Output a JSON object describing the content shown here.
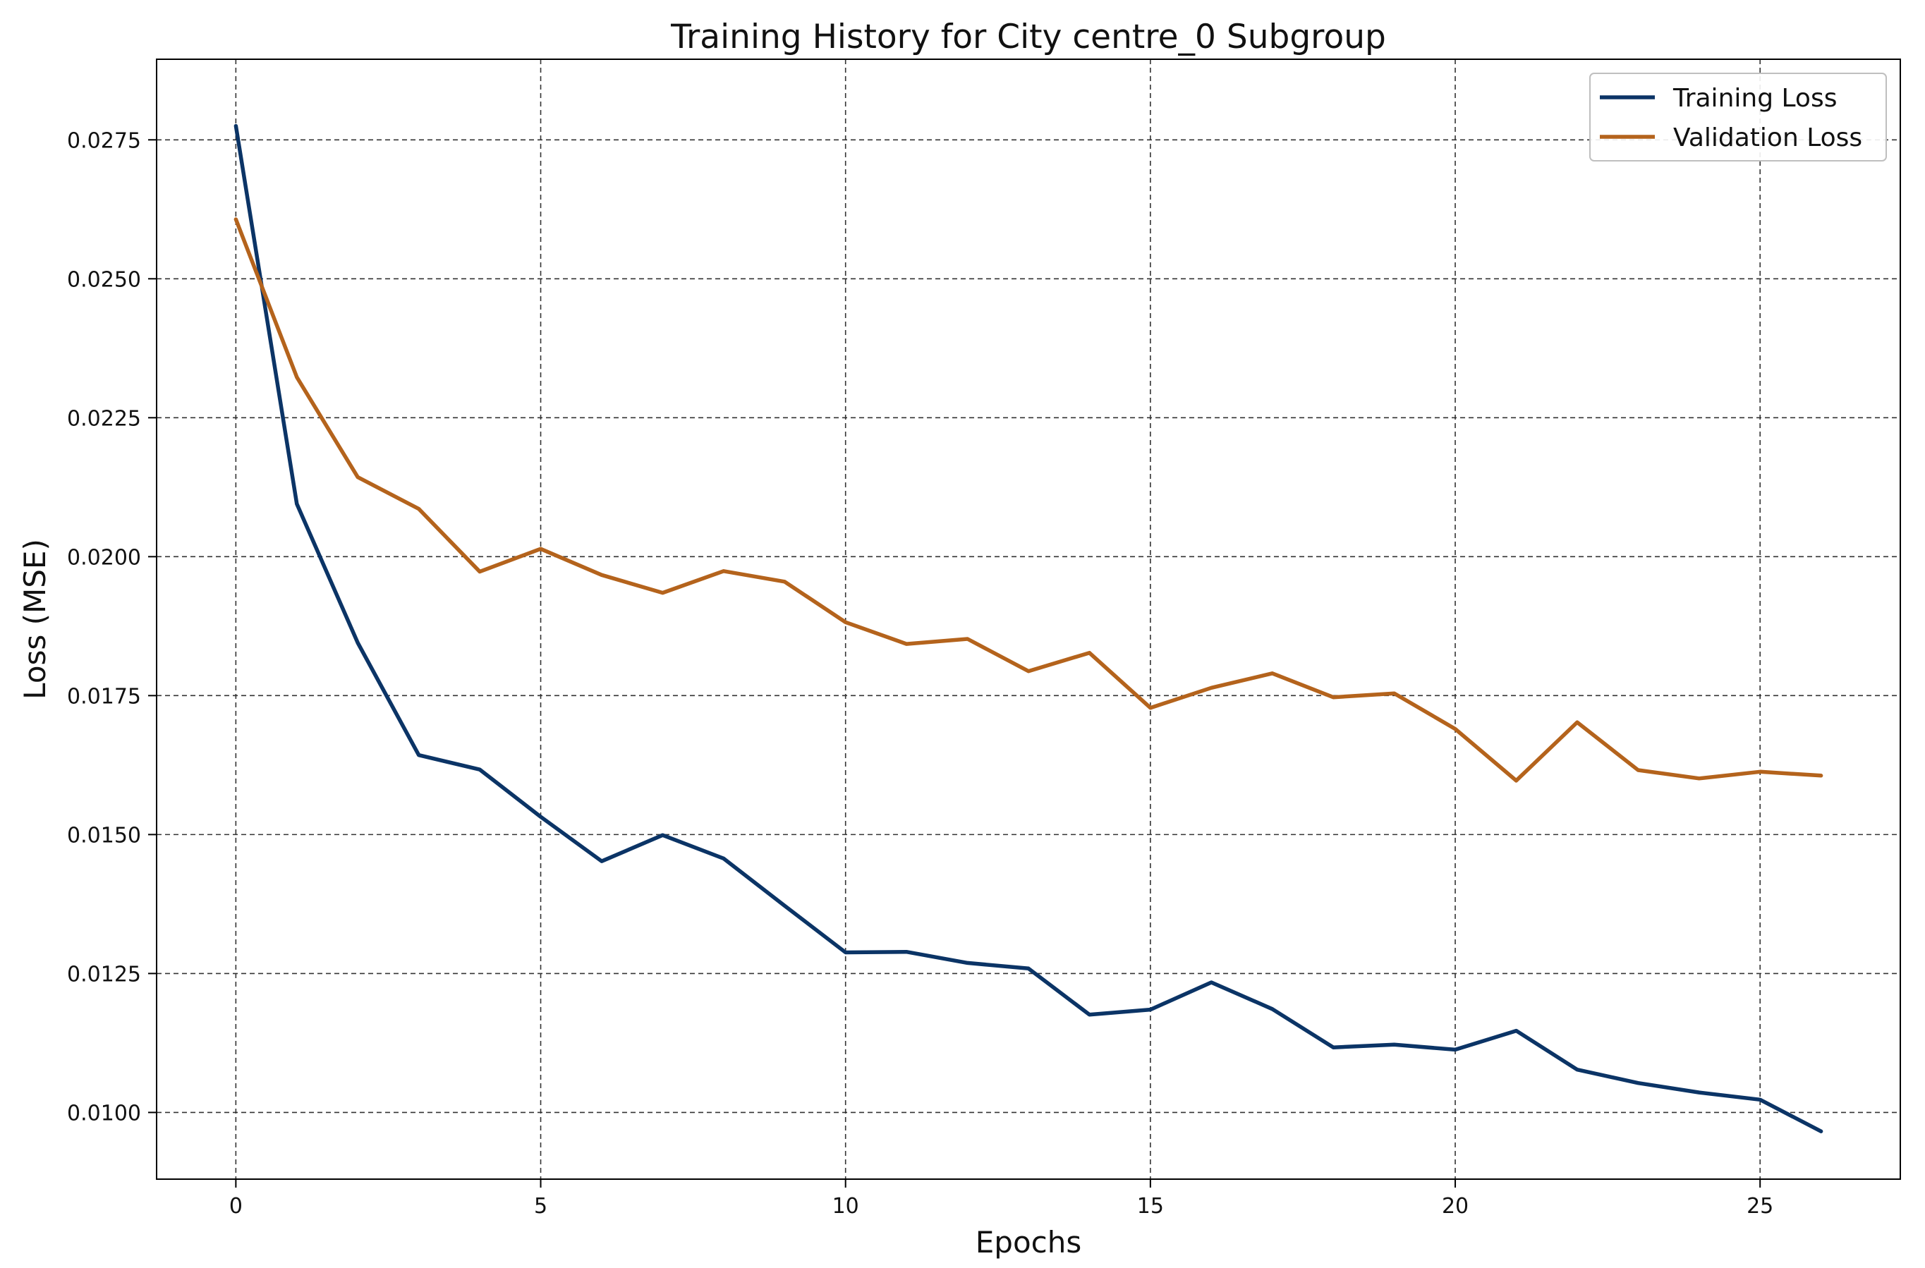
{
  "chart_data": {
    "type": "line",
    "title": "Training History for City centre_0 Subgroup",
    "xlabel": "Epochs",
    "ylabel": "Loss (MSE)",
    "xlim": [
      -1.3,
      27.3
    ],
    "ylim": [
      0.0088,
      0.02895
    ],
    "x_ticks": [
      0,
      5,
      10,
      15,
      20,
      25
    ],
    "x_tick_labels": [
      "0",
      "5",
      "10",
      "15",
      "20",
      "25"
    ],
    "y_ticks": [
      0.01,
      0.0125,
      0.015,
      0.0175,
      0.02,
      0.0225,
      0.025,
      0.0275
    ],
    "y_tick_labels": [
      "0.0100",
      "0.0125",
      "0.0150",
      "0.0175",
      "0.0200",
      "0.0225",
      "0.0250",
      "0.0275"
    ],
    "grid": true,
    "legend_position": "top-right",
    "x": [
      0,
      1,
      2,
      3,
      4,
      5,
      6,
      7,
      8,
      9,
      10,
      11,
      12,
      13,
      14,
      15,
      16,
      17,
      18,
      19,
      20,
      21,
      22,
      23,
      24,
      25,
      26
    ],
    "series": [
      {
        "name": "Training Loss",
        "color": "#0b3466",
        "values": [
          0.02775,
          0.02095,
          0.01845,
          0.01643,
          0.01617,
          0.01532,
          0.01452,
          0.01499,
          0.01457,
          0.01372,
          0.01288,
          0.01289,
          0.01269,
          0.01259,
          0.01176,
          0.01185,
          0.01234,
          0.01186,
          0.01117,
          0.01122,
          0.01113,
          0.01147,
          0.01077,
          0.01053,
          0.01036,
          0.01023,
          0.00966
        ]
      },
      {
        "name": "Validation Loss",
        "color": "#b4631c",
        "values": [
          0.02607,
          0.02323,
          0.02143,
          0.02086,
          0.01973,
          0.02014,
          0.01967,
          0.01935,
          0.01974,
          0.01955,
          0.01882,
          0.01843,
          0.01852,
          0.01794,
          0.01827,
          0.01728,
          0.01764,
          0.0179,
          0.01747,
          0.01754,
          0.0169,
          0.01597,
          0.01702,
          0.01616,
          0.01601,
          0.01613,
          0.01606
        ]
      }
    ]
  }
}
